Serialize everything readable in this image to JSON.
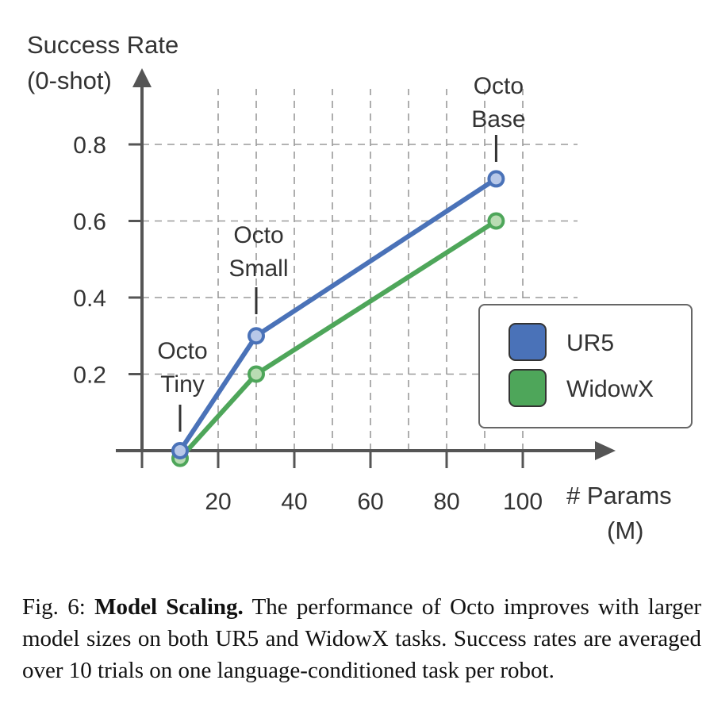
{
  "chart_data": {
    "type": "line",
    "ylabel_line1": "Success Rate",
    "ylabel_line2": "(0-shot)",
    "xlabel_line1": "# Params",
    "xlabel_line2": "(M)",
    "x_ticks": [
      20,
      40,
      60,
      80,
      100
    ],
    "y_ticks": [
      0.2,
      0.4,
      0.6,
      0.8
    ],
    "x_tick_labels": [
      "20",
      "40",
      "60",
      "80",
      "100"
    ],
    "y_tick_labels": [
      "0.2",
      "0.4",
      "0.6",
      "0.8"
    ],
    "xlim": [
      0,
      100
    ],
    "ylim": [
      0,
      0.8
    ],
    "grid": true,
    "legend_position": "right",
    "x": [
      10,
      30,
      93
    ],
    "series": [
      {
        "name": "UR5",
        "color": "#4a72b8",
        "marker_fill": "#b8c8e8",
        "values": [
          0.0,
          0.3,
          0.71
        ]
      },
      {
        "name": "WidowX",
        "color": "#4ea65a",
        "marker_fill": "#b9dcb3",
        "values": [
          -0.02,
          0.2,
          0.6
        ]
      }
    ],
    "annotations": [
      {
        "x": 10,
        "line1": "Octo",
        "line2": "Tiny"
      },
      {
        "x": 30,
        "line1": "Octo",
        "line2": "Small"
      },
      {
        "x": 93,
        "line1": "Octo",
        "line2": "Base"
      }
    ]
  },
  "caption": {
    "label": "Fig. 6:",
    "bold": "Model Scaling.",
    "text": "The performance of Octo improves with larger model sizes on both UR5 and WidowX tasks. Success rates are averaged over 10 trials on one language-conditioned task per robot."
  }
}
